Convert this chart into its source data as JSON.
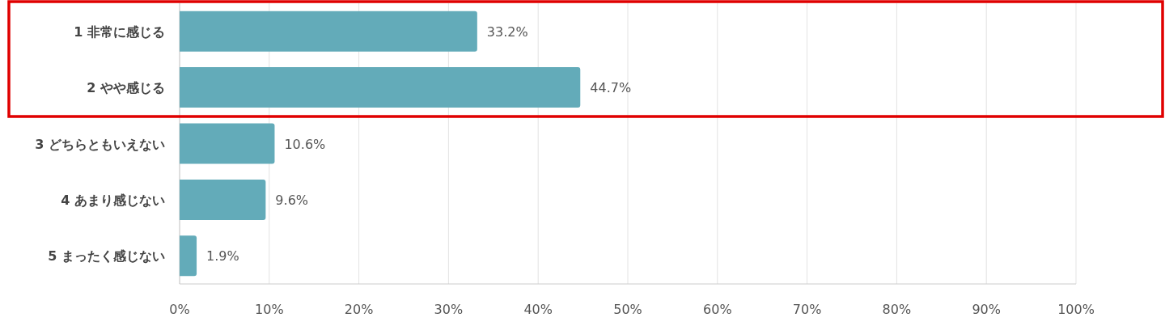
{
  "chart_data": {
    "type": "bar",
    "orientation": "horizontal",
    "categories": [
      "1 非常に感じる",
      "2 やや感じる",
      "3 どちらともいえない",
      "4 あまり感じない",
      "5 まったく感じない"
    ],
    "values": [
      33.2,
      44.7,
      10.6,
      9.6,
      1.9
    ],
    "value_labels": [
      "33.2%",
      "44.7%",
      "10.6%",
      "9.6%",
      "1.9%"
    ],
    "color": "#63abb9",
    "xlim": [
      0,
      100
    ],
    "xticks": [
      {
        "value": 0,
        "label": "0%"
      },
      {
        "value": 10,
        "label": "10%"
      },
      {
        "value": 20,
        "label": "20%"
      },
      {
        "value": 30,
        "label": "30%"
      },
      {
        "value": 40,
        "label": "40%"
      },
      {
        "value": 50,
        "label": "50%"
      },
      {
        "value": 60,
        "label": "60%"
      },
      {
        "value": 70,
        "label": "70%"
      },
      {
        "value": 80,
        "label": "80%"
      },
      {
        "value": 90,
        "label": "90%"
      },
      {
        "value": 100,
        "label": "100%"
      }
    ],
    "grid": "x"
  }
}
